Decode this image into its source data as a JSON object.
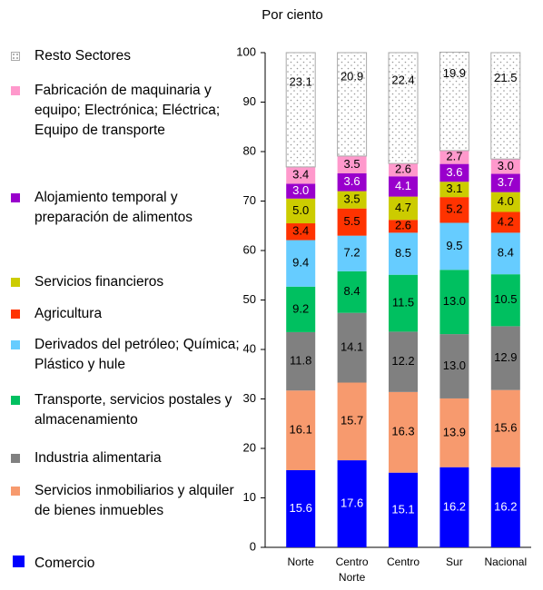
{
  "chart_data": {
    "type": "stacked_bar",
    "title": "Por ciento",
    "categories": [
      "Norte",
      "Centro Norte",
      "Centro",
      "Sur",
      "Nacional"
    ],
    "ylim": [
      0,
      100
    ],
    "yticks": [
      0,
      10,
      20,
      30,
      40,
      50,
      60,
      70,
      80,
      90,
      100
    ],
    "series": [
      {
        "name": "Comercio",
        "color": "#0000ff",
        "label_color": "#ffffff",
        "values": [
          15.6,
          17.6,
          15.1,
          16.2,
          16.2
        ],
        "value_labels": [
          "15.6",
          "17.6",
          "15.1",
          "16.2",
          "16.2"
        ]
      },
      {
        "name": "Servicios inmobiliarios y alquiler de bienes inmuebles",
        "color": "#f79a6e",
        "values": [
          16.1,
          15.7,
          16.3,
          13.9,
          15.6
        ],
        "value_labels": [
          "16.1",
          "15.7",
          "16.3",
          "13.9",
          "15.6"
        ]
      },
      {
        "name": "Industria alimentaria",
        "color": "#808080",
        "values": [
          11.8,
          14.1,
          12.2,
          13.0,
          12.9
        ],
        "value_labels": [
          "11.8",
          "14.1",
          "12.2",
          "13.0",
          "12.9"
        ]
      },
      {
        "name": "Transporte, servicios postales y almacenamiento",
        "color": "#00c060",
        "values": [
          9.2,
          8.4,
          11.5,
          13.0,
          10.5
        ],
        "value_labels": [
          "9.2",
          "8.4",
          "11.5",
          "13.0",
          "10.5"
        ]
      },
      {
        "name": "Derivados del petróleo; Química; Plástico y hule",
        "color": "#66ccff",
        "values": [
          9.4,
          7.2,
          8.5,
          9.5,
          8.4
        ],
        "value_labels": [
          "9.4",
          "7.2",
          "8.5",
          "9.5",
          "8.4"
        ]
      },
      {
        "name": "Agricultura",
        "color": "#ff3300",
        "values": [
          3.4,
          5.5,
          2.6,
          5.2,
          4.2
        ],
        "value_labels": [
          "3.4",
          "5.5",
          "2.6",
          "5.2",
          "4.2"
        ]
      },
      {
        "name": "Servicios financieros",
        "color": "#cccc00",
        "values": [
          5.0,
          3.5,
          4.7,
          3.1,
          4.0
        ],
        "value_labels": [
          "5.0",
          "3.5",
          "4.7",
          "3.1",
          "4.0"
        ]
      },
      {
        "name": "Alojamiento temporal y preparación de alimentos",
        "color": "#9900cc",
        "label_color": "#ffffff",
        "values": [
          3.0,
          3.6,
          4.1,
          3.6,
          3.7
        ],
        "value_labels": [
          "3.0",
          "3.6",
          "4.1",
          "3.6",
          "3.7"
        ]
      },
      {
        "name": "Fabricación de maquinaria y equipo; Electrónica; Eléctrica; Equipo de transporte",
        "color": "#ff99cc",
        "values": [
          3.4,
          3.5,
          2.6,
          2.7,
          3.0
        ],
        "value_labels": [
          "3.4",
          "3.5",
          "2.6",
          "2.7",
          "3.0"
        ]
      },
      {
        "name": "Resto Sectores",
        "color": "#ffffff",
        "pattern": "dotted",
        "values": [
          23.1,
          20.9,
          22.4,
          19.9,
          21.5
        ],
        "value_labels": [
          "23.1",
          "20.9",
          "22.4",
          "19.9",
          "21.5"
        ]
      }
    ]
  }
}
